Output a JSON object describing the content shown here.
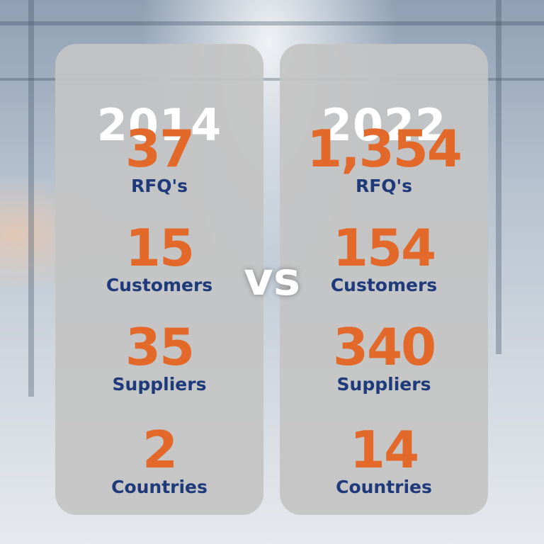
{
  "columns": [
    {
      "year": "2014",
      "stats": [
        {
          "value": "37",
          "label": "RFQ's"
        },
        {
          "value": "15",
          "label": "Customers"
        },
        {
          "value": "35",
          "label": "Suppliers"
        },
        {
          "value": "2",
          "label": "Countries"
        }
      ]
    },
    {
      "year": "2022",
      "stats": [
        {
          "value": "1,354",
          "label": "RFQ's"
        },
        {
          "value": "154",
          "label": "Customers"
        },
        {
          "value": "340",
          "label": "Suppliers"
        },
        {
          "value": "14",
          "label": "Countries"
        }
      ]
    }
  ],
  "separator": "vs"
}
